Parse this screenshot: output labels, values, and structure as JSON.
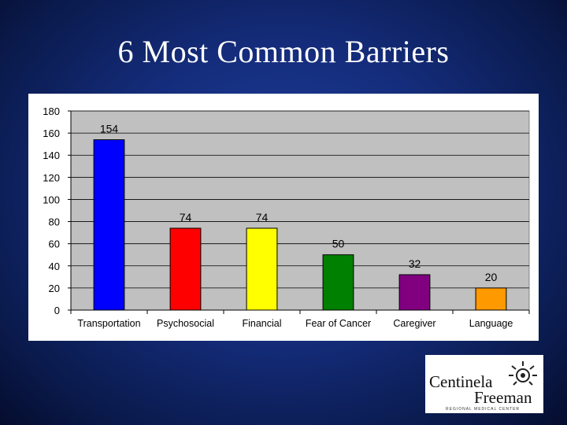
{
  "slide": {
    "title": "6 Most Common Barriers"
  },
  "logo": {
    "line1": "Centinela",
    "line2": "Freeman",
    "subtitle": "REGIONAL MEDICAL CENTER",
    "emblem": "sun-emblem-icon"
  },
  "chart_data": {
    "type": "bar",
    "categories": [
      "Transportation",
      "Psychosocial",
      "Financial",
      "Fear of Cancer",
      "Caregiver",
      "Language"
    ],
    "values": [
      154,
      74,
      74,
      50,
      32,
      20
    ],
    "colors": [
      "#0000ff",
      "#ff0000",
      "#ffff00",
      "#008000",
      "#800080",
      "#ff9900"
    ],
    "ylim": [
      0,
      180
    ],
    "yticks": [
      0,
      20,
      40,
      60,
      80,
      100,
      120,
      140,
      160,
      180
    ],
    "grid": true,
    "plot_background": "#c0c0c0",
    "data_labels": true,
    "legend": "none"
  }
}
